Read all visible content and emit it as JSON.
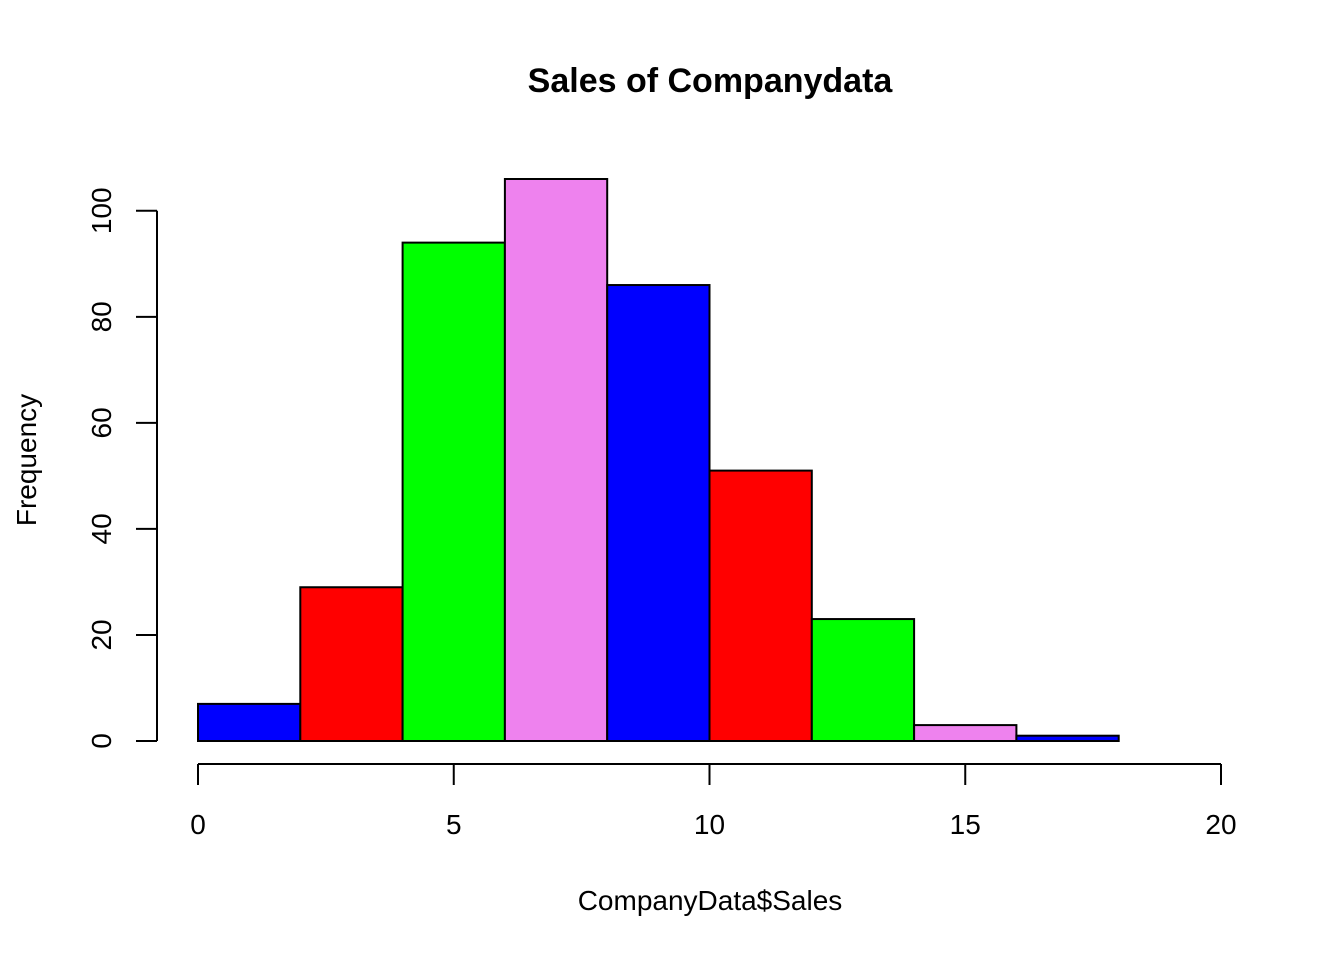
{
  "chart_data": {
    "type": "bar",
    "title": "Sales of Companydata",
    "xlabel": "CompanyData$Sales",
    "ylabel": "Frequency",
    "bins": [
      {
        "from": 0,
        "to": 2,
        "count": 7,
        "color": "#0000FF"
      },
      {
        "from": 2,
        "to": 4,
        "count": 29,
        "color": "#FF0000"
      },
      {
        "from": 4,
        "to": 6,
        "count": 94,
        "color": "#00FF00"
      },
      {
        "from": 6,
        "to": 8,
        "count": 106,
        "color": "#EE82EE"
      },
      {
        "from": 8,
        "to": 10,
        "count": 86,
        "color": "#0000FF"
      },
      {
        "from": 10,
        "to": 12,
        "count": 51,
        "color": "#FF0000"
      },
      {
        "from": 12,
        "to": 14,
        "count": 23,
        "color": "#00FF00"
      },
      {
        "from": 14,
        "to": 16,
        "count": 3,
        "color": "#EE82EE"
      },
      {
        "from": 16,
        "to": 18,
        "count": 1,
        "color": "#0000FF"
      }
    ],
    "xlim": [
      0,
      20
    ],
    "ylim": [
      0,
      106
    ],
    "xticks": [
      0,
      5,
      10,
      15,
      20
    ],
    "yticks": [
      0,
      20,
      40,
      60,
      80,
      100
    ],
    "grid": false,
    "legend": "none"
  }
}
